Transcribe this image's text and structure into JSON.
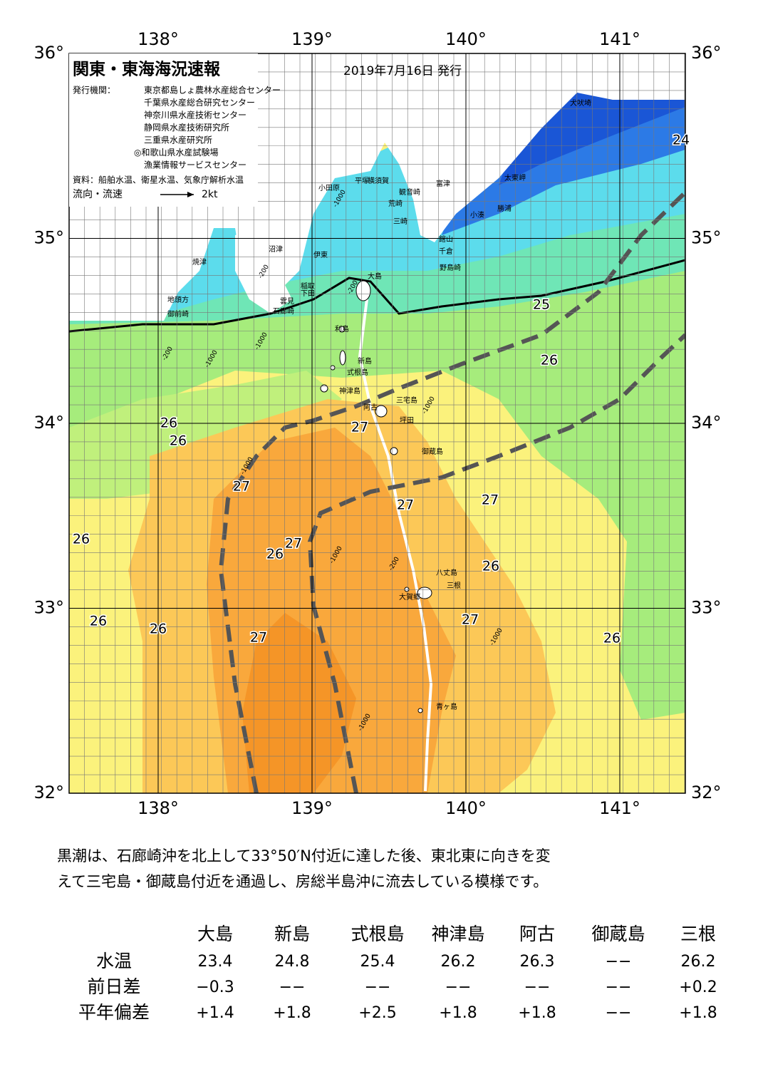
{
  "map": {
    "title": "関東・東海海況速報",
    "date": "2019年7月16日 発行",
    "issuer_label": "発行機関：",
    "issuers": [
      "東京都島しょ農林水産総合センター",
      "千葉県水産総合研究センター",
      "神奈川県水産技術センター",
      "静岡県水産技術研究所",
      "三重県水産研究所",
      "◎和歌山県水産試験場",
      "漁業情報サービスセンター"
    ],
    "source": "資料：船舶水温、衛星水温、気象庁解析水温",
    "legend_label": "流向・流速",
    "legend_speed": "2kt",
    "lon_ticks": [
      {
        "value": 138,
        "label": "138°"
      },
      {
        "value": 139,
        "label": "139°"
      },
      {
        "value": 140,
        "label": "140°"
      },
      {
        "value": 141,
        "label": "141°"
      }
    ],
    "lat_ticks": [
      {
        "value": 36,
        "label": "36°"
      },
      {
        "value": 35,
        "label": "35°"
      },
      {
        "value": 34,
        "label": "34°"
      },
      {
        "value": 33,
        "label": "33°"
      },
      {
        "value": 32,
        "label": "32°"
      }
    ],
    "places": [
      "犬吠埼",
      "太東岬",
      "勝浦",
      "小湊",
      "館山",
      "千倉",
      "野島崎",
      "富津",
      "横須賀",
      "観音崎",
      "荒崎",
      "三崎",
      "平塚",
      "小田原",
      "大島",
      "沼津",
      "伊東",
      "稲取",
      "下田",
      "雲見",
      "石廊崎",
      "焼津",
      "地頭方",
      "御前崎",
      "利島",
      "新島",
      "式根島",
      "神津島",
      "三宅島",
      "阿古",
      "坪田",
      "御蔵島",
      "八丈島",
      "三根",
      "大賀郷",
      "青ヶ島"
    ],
    "isotherm_labels": [
      "24",
      "25",
      "26",
      "26",
      "26",
      "27",
      "27",
      "27",
      "27",
      "26",
      "27",
      "26",
      "26",
      "27",
      "26",
      "27",
      "26",
      "26"
    ],
    "depth_labels": [
      "-200",
      "-1000",
      "-200",
      "-1000",
      "-1000",
      "-200",
      "-1000",
      "-1000",
      "-1000",
      "-200",
      "-1000",
      "-1000"
    ]
  },
  "text": {
    "paragraph": [
      "黒潮は、石廊崎沖を北上して33°50′N付近に達した後、東北東に向きを変",
      "えて三宅島・御蔵島付近を通過し、房総半島沖に流去している模様です。"
    ]
  },
  "table": {
    "header": [
      "大島",
      "新島",
      "式根島",
      "神津島",
      "阿古",
      "御蔵島",
      "三根"
    ],
    "rows": [
      [
        "水温",
        "23.4",
        "24.8",
        "25.4",
        "26.2",
        "26.3",
        "−−",
        "26.2"
      ],
      [
        "前日差",
        "−0.3",
        "−−",
        "−−",
        "−−",
        "−−",
        "−−",
        "+0.2"
      ],
      [
        "平年偏差",
        "+1.4",
        "+1.8",
        "+2.5",
        "+1.8",
        "+1.8",
        "−−",
        "+1.8"
      ]
    ]
  }
}
